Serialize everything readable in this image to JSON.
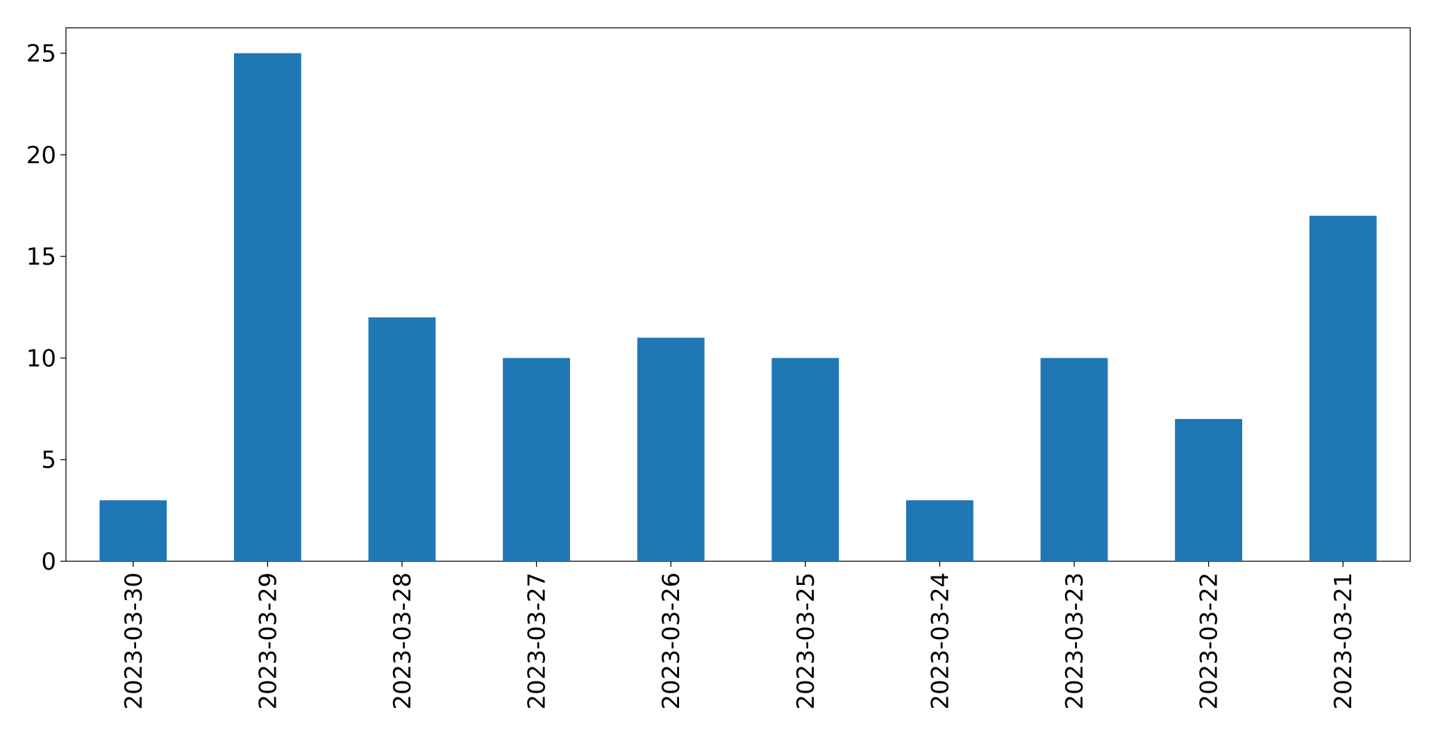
{
  "chart_data": {
    "type": "bar",
    "categories": [
      "2023-03-30",
      "2023-03-29",
      "2023-03-28",
      "2023-03-27",
      "2023-03-26",
      "2023-03-25",
      "2023-03-24",
      "2023-03-23",
      "2023-03-22",
      "2023-03-21"
    ],
    "values": [
      3,
      25,
      12,
      10,
      11,
      10,
      3,
      10,
      7,
      17
    ],
    "color": "#1f77b4",
    "ylim": [
      0,
      26.25
    ],
    "yticks": [
      0,
      5,
      10,
      15,
      20,
      25
    ],
    "grid": false
  }
}
